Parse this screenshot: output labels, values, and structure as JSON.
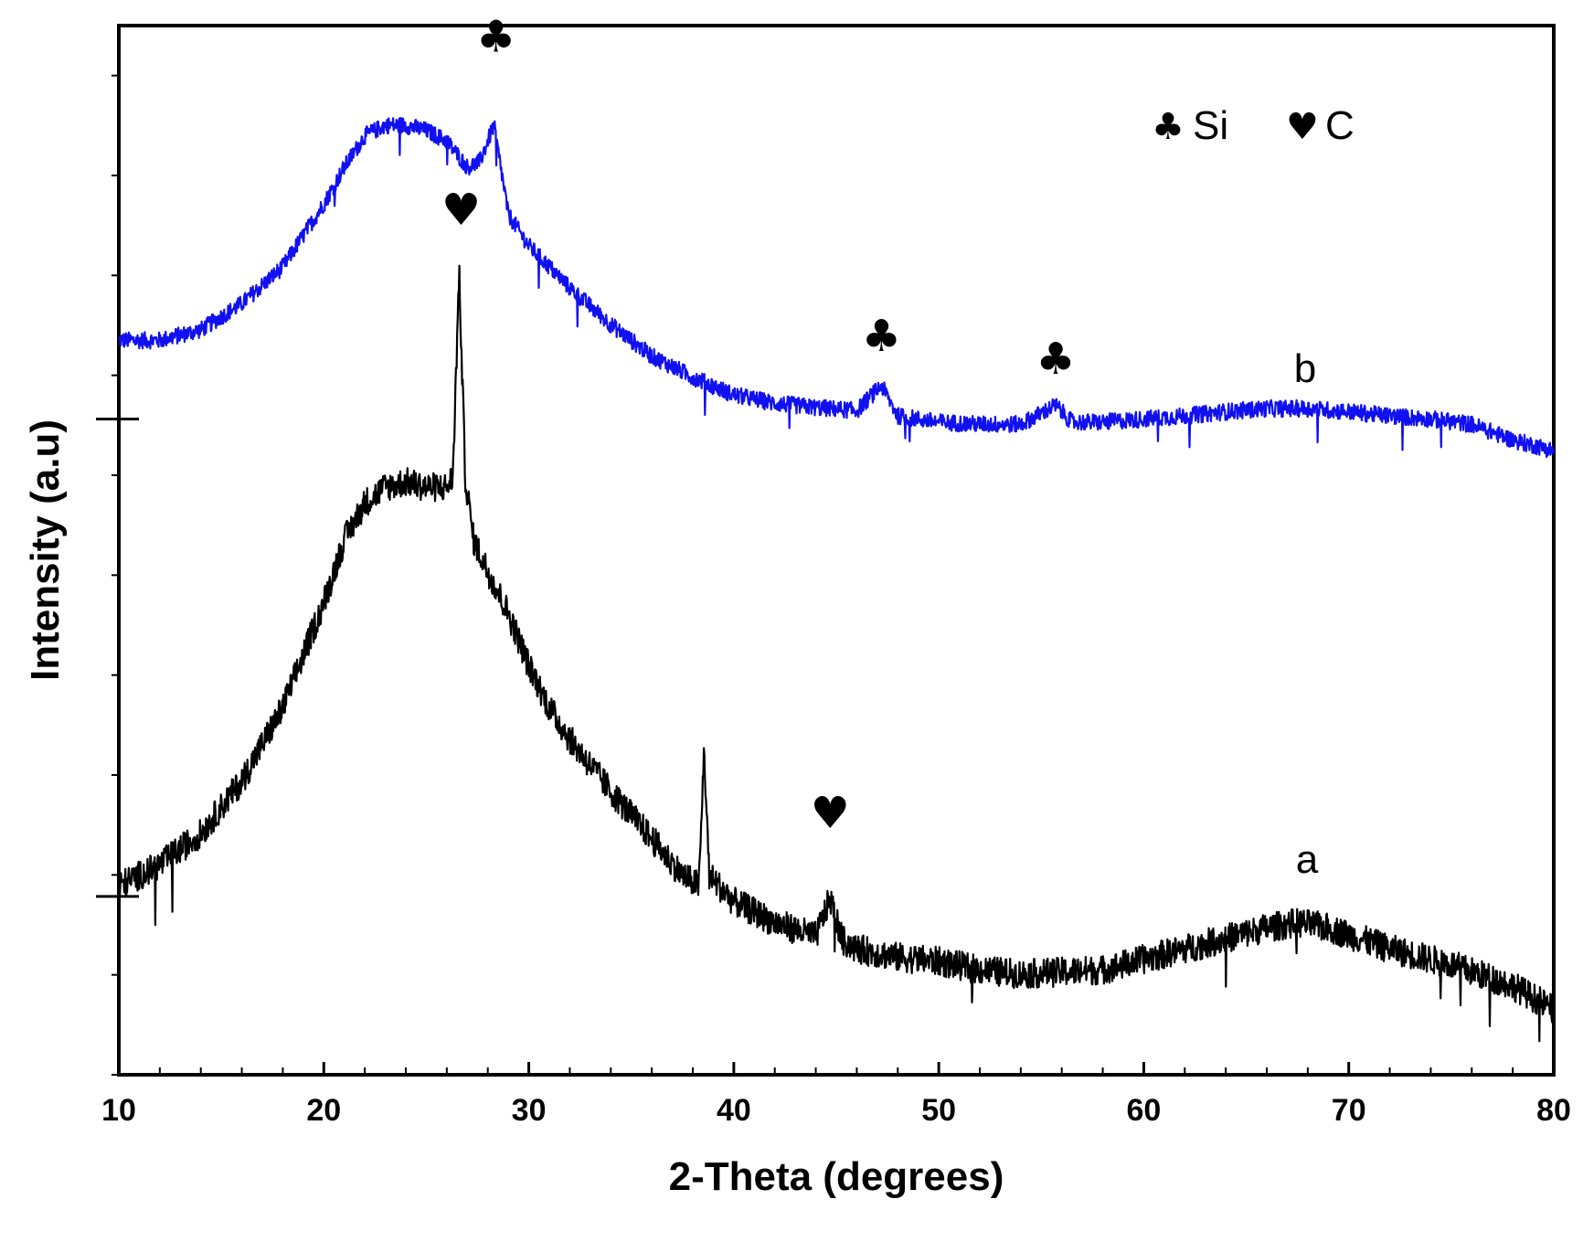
{
  "chart_data": {
    "type": "line",
    "title": "",
    "xlabel": "2-Theta (degrees)",
    "ylabel": "Intensity (a.u)",
    "xlim": [
      10,
      80
    ],
    "ylim": [
      0,
      1
    ],
    "xticks": [
      10,
      20,
      30,
      40,
      50,
      60,
      70,
      80
    ],
    "grid": false,
    "series": [
      {
        "name": "b",
        "label": "b",
        "color": "#1010f0",
        "base": 0.625,
        "noise": 0.008,
        "points": [
          [
            10,
            0.7
          ],
          [
            12,
            0.7
          ],
          [
            14,
            0.71
          ],
          [
            16,
            0.735
          ],
          [
            18,
            0.77
          ],
          [
            20,
            0.83
          ],
          [
            21,
            0.865
          ],
          [
            22,
            0.895
          ],
          [
            23,
            0.905
          ],
          [
            24,
            0.905
          ],
          [
            25,
            0.9
          ],
          [
            26,
            0.89
          ],
          [
            27,
            0.865
          ],
          [
            27.6,
            0.87
          ],
          [
            28.3,
            0.905
          ],
          [
            29,
            0.82
          ],
          [
            30,
            0.79
          ],
          [
            32,
            0.75
          ],
          [
            34,
            0.715
          ],
          [
            36,
            0.685
          ],
          [
            38,
            0.665
          ],
          [
            40,
            0.648
          ],
          [
            42,
            0.64
          ],
          [
            44,
            0.636
          ],
          [
            46,
            0.633
          ],
          [
            47.2,
            0.657
          ],
          [
            48,
            0.628
          ],
          [
            50,
            0.622
          ],
          [
            52,
            0.62
          ],
          [
            54,
            0.62
          ],
          [
            55.7,
            0.638
          ],
          [
            56.5,
            0.622
          ],
          [
            58,
            0.622
          ],
          [
            60,
            0.625
          ],
          [
            62,
            0.628
          ],
          [
            64,
            0.632
          ],
          [
            66,
            0.635
          ],
          [
            68,
            0.635
          ],
          [
            70,
            0.632
          ],
          [
            72,
            0.628
          ],
          [
            74,
            0.625
          ],
          [
            76,
            0.62
          ],
          [
            78,
            0.605
          ],
          [
            80,
            0.595
          ]
        ]
      },
      {
        "name": "a",
        "label": "a",
        "color": "#000000",
        "base": 0.17,
        "noise": 0.014,
        "points": [
          [
            10,
            0.18
          ],
          [
            12,
            0.2
          ],
          [
            14,
            0.23
          ],
          [
            16,
            0.28
          ],
          [
            18,
            0.35
          ],
          [
            19,
            0.4
          ],
          [
            20,
            0.45
          ],
          [
            21,
            0.51
          ],
          [
            22,
            0.545
          ],
          [
            23,
            0.56
          ],
          [
            24,
            0.565
          ],
          [
            25,
            0.56
          ],
          [
            26,
            0.56
          ],
          [
            26.3,
            0.57
          ],
          [
            26.6,
            0.765
          ],
          [
            26.9,
            0.57
          ],
          [
            27.3,
            0.51
          ],
          [
            28,
            0.48
          ],
          [
            29,
            0.44
          ],
          [
            30,
            0.39
          ],
          [
            31,
            0.35
          ],
          [
            32,
            0.32
          ],
          [
            34,
            0.27
          ],
          [
            36,
            0.225
          ],
          [
            37.5,
            0.19
          ],
          [
            38.3,
            0.18
          ],
          [
            38.55,
            0.31
          ],
          [
            38.8,
            0.19
          ],
          [
            40,
            0.165
          ],
          [
            42,
            0.145
          ],
          [
            44,
            0.132
          ],
          [
            44.7,
            0.168
          ],
          [
            45.3,
            0.128
          ],
          [
            46,
            0.12
          ],
          [
            48,
            0.112
          ],
          [
            50,
            0.108
          ],
          [
            52,
            0.1
          ],
          [
            54,
            0.096
          ],
          [
            56,
            0.098
          ],
          [
            58,
            0.1
          ],
          [
            60,
            0.11
          ],
          [
            62,
            0.12
          ],
          [
            64,
            0.13
          ],
          [
            66,
            0.14
          ],
          [
            67.5,
            0.145
          ],
          [
            69,
            0.14
          ],
          [
            72,
            0.12
          ],
          [
            75,
            0.105
          ],
          [
            78,
            0.085
          ],
          [
            80,
            0.062
          ]
        ]
      }
    ],
    "peak_markers": [
      {
        "symbol": "♣",
        "phase": "Si",
        "x": 28.4,
        "y": 0.975
      },
      {
        "symbol": "♣",
        "phase": "Si",
        "x": 47.2,
        "y": 0.69
      },
      {
        "symbol": "♣",
        "phase": "Si",
        "x": 55.7,
        "y": 0.668
      },
      {
        "symbol": "♥",
        "phase": "C",
        "x": 26.7,
        "y": 0.81
      },
      {
        "symbol": "♥",
        "phase": "C",
        "x": 44.7,
        "y": 0.235
      }
    ],
    "legend": {
      "position": "top-right",
      "entries": [
        {
          "symbol": "♣",
          "label": "Si"
        },
        {
          "symbol": "♥",
          "label": "C"
        }
      ]
    }
  }
}
